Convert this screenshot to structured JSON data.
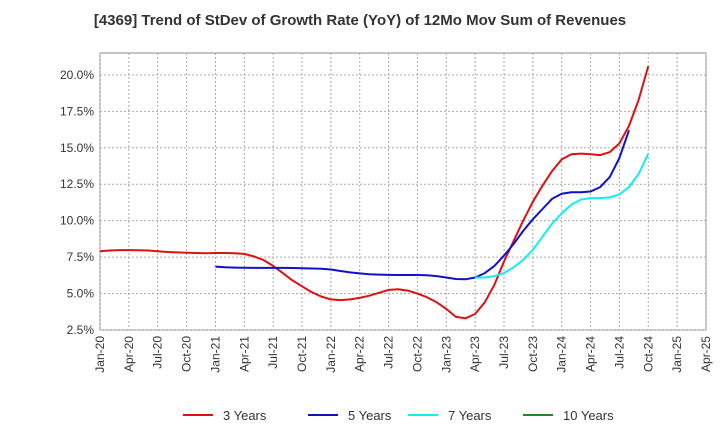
{
  "chart_data": {
    "type": "line",
    "title": "[4369]  Trend of StDev of Growth Rate (YoY) of 12Mo Mov Sum of Revenues",
    "xlabel": "",
    "ylabel": "",
    "ylim": [
      2.5,
      21.5
    ],
    "xlim": [
      "Jan-20",
      "Apr-25"
    ],
    "yticks": [
      2.5,
      5.0,
      7.5,
      10.0,
      12.5,
      15.0,
      17.5,
      20.0
    ],
    "ytick_labels": [
      "2.5%",
      "5.0%",
      "7.5%",
      "10.0%",
      "12.5%",
      "15.0%",
      "17.5%",
      "20.0%"
    ],
    "xtick_labels": [
      "Jan-20",
      "Apr-20",
      "Jul-20",
      "Oct-20",
      "Jan-21",
      "Apr-21",
      "Jul-21",
      "Oct-21",
      "Jan-22",
      "Apr-22",
      "Jul-22",
      "Oct-22",
      "Jan-23",
      "Apr-23",
      "Jul-23",
      "Oct-23",
      "Jan-24",
      "Apr-24",
      "Jul-24",
      "Oct-24",
      "Jan-25",
      "Apr-25"
    ],
    "grid": true,
    "legend_position": "bottom",
    "series": [
      {
        "name": "3 Years",
        "color": "#dd1111",
        "start": "Jan-20",
        "values": [
          7.9,
          7.95,
          7.98,
          7.98,
          7.97,
          7.95,
          7.9,
          7.85,
          7.82,
          7.8,
          7.78,
          7.77,
          7.78,
          7.78,
          7.77,
          7.72,
          7.55,
          7.3,
          6.9,
          6.4,
          5.9,
          5.5,
          5.1,
          4.8,
          4.6,
          4.55,
          4.6,
          4.7,
          4.85,
          5.05,
          5.25,
          5.3,
          5.2,
          5.0,
          4.75,
          4.4,
          3.95,
          3.4,
          3.3,
          3.6,
          4.4,
          5.6,
          7.2,
          8.6,
          10.0,
          11.3,
          12.4,
          13.4,
          14.2,
          14.55,
          14.6,
          14.55,
          14.5,
          14.7,
          15.3,
          16.5,
          18.3,
          20.6
        ]
      },
      {
        "name": "5 Years",
        "color": "#1111cc",
        "start": "Jan-21",
        "values": [
          6.85,
          6.8,
          6.78,
          6.77,
          6.76,
          6.76,
          6.76,
          6.76,
          6.75,
          6.74,
          6.72,
          6.7,
          6.65,
          6.55,
          6.45,
          6.38,
          6.33,
          6.3,
          6.28,
          6.27,
          6.27,
          6.27,
          6.26,
          6.2,
          6.1,
          6.0,
          5.98,
          6.1,
          6.4,
          6.9,
          7.6,
          8.4,
          9.3,
          10.1,
          10.8,
          11.5,
          11.85,
          11.95,
          11.95,
          12.0,
          12.3,
          13.0,
          14.3,
          16.2
        ]
      },
      {
        "name": "7 Years",
        "color": "#11eeee",
        "start": "Apr-23",
        "values": [
          6.1,
          6.1,
          6.2,
          6.4,
          6.8,
          7.3,
          8.0,
          8.9,
          9.8,
          10.5,
          11.1,
          11.45,
          11.55,
          11.55,
          11.6,
          11.8,
          12.3,
          13.2,
          14.6
        ]
      },
      {
        "name": "10 Years",
        "color": "#228822",
        "start": "Jan-25",
        "values": []
      }
    ]
  }
}
